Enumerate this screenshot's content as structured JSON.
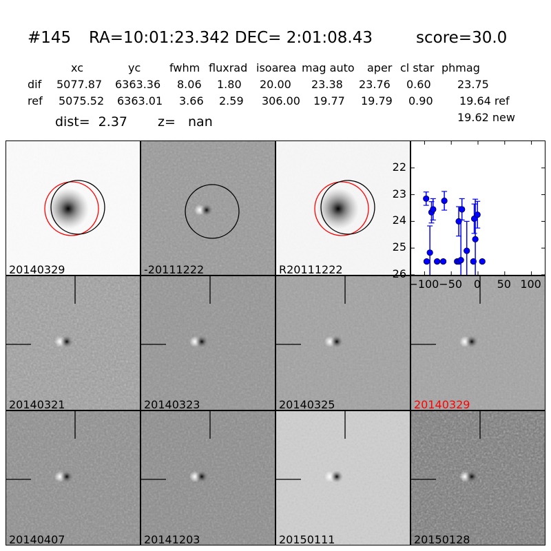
{
  "header": {
    "id": "#145",
    "coords": "RA=10:01:23.342 DEC= 2:01:08.43",
    "score": "score=30.0"
  },
  "table": {
    "columns": [
      "xc",
      "yc",
      "fwhm",
      "fluxrad",
      "isoarea",
      "mag auto",
      "aper",
      "cl star",
      "phmag"
    ],
    "rows": [
      {
        "label": "dif",
        "values": [
          "5077.87",
          "6363.36",
          "8.06",
          "1.80",
          "20.00",
          "23.38",
          "23.76",
          "0.60",
          "23.75"
        ]
      },
      {
        "label": "ref",
        "values": [
          "5075.52",
          "6363.01",
          "3.66",
          "2.59",
          "306.00",
          "19.77",
          "19.79",
          "0.90",
          "19.64 ref"
        ]
      }
    ],
    "phmag_new": "19.62 new",
    "dist": "dist=  2.37",
    "z": "z=   nan"
  },
  "panels": [
    {
      "label": "20140329",
      "type": "image"
    },
    {
      "label": "-20111222",
      "type": "diff"
    },
    {
      "label": "R20111222",
      "type": "image"
    },
    {
      "label": "20140321",
      "type": "diff"
    },
    {
      "label": "20140323",
      "type": "diff"
    },
    {
      "label": "20140325",
      "type": "diff"
    },
    {
      "label": "20140329",
      "type": "diff",
      "highlight": "#ff0000"
    },
    {
      "label": "20140407",
      "type": "diff"
    },
    {
      "label": "20141203",
      "type": "diff"
    },
    {
      "label": "20150111",
      "type": "diff"
    },
    {
      "label": "20150128",
      "type": "diff"
    }
  ],
  "colors": {
    "circle_ref": "#ff0000",
    "circle_obj": "#000000",
    "points": "#0000ff"
  },
  "chart_data": {
    "type": "scatter",
    "title": "",
    "xlabel": "",
    "ylabel": "",
    "xlim": [
      -125,
      125
    ],
    "ylim": [
      26,
      21
    ],
    "y_inverted": true,
    "xticks": [
      -100,
      -50,
      0,
      50,
      100
    ],
    "yticks": [
      22,
      23,
      24,
      25,
      26
    ],
    "grid": false,
    "error_bars": true,
    "points": [
      {
        "x": -96,
        "y": 25.5,
        "err": 0.05
      },
      {
        "x": -97,
        "y": 23.15,
        "err": 0.25
      },
      {
        "x": -90,
        "y": 25.17,
        "err": 1.0
      },
      {
        "x": -87,
        "y": 23.66,
        "err": 0.4
      },
      {
        "x": -84,
        "y": 23.55,
        "err": 0.4
      },
      {
        "x": -76.5,
        "y": 25.5,
        "err": 0.05
      },
      {
        "x": -65,
        "y": 25.5,
        "err": 0.05
      },
      {
        "x": -63,
        "y": 23.23,
        "err": 0.35
      },
      {
        "x": -39,
        "y": 25.5,
        "err": 0.05
      },
      {
        "x": -36,
        "y": 24.0,
        "err": 0.55
      },
      {
        "x": -35.5,
        "y": 25.5,
        "err": 0.05
      },
      {
        "x": -32,
        "y": 25.45,
        "err": 1.5
      },
      {
        "x": -30,
        "y": 23.55,
        "err": 0.4
      },
      {
        "x": -21,
        "y": 25.1,
        "err": 1.1
      },
      {
        "x": -8.6,
        "y": 25.5,
        "err": 0.05
      },
      {
        "x": -7,
        "y": 23.9,
        "err": 0.55
      },
      {
        "x": -5,
        "y": 24.67,
        "err": 1.5
      },
      {
        "x": -1,
        "y": 23.75,
        "err": 0.5
      },
      {
        "x": 8,
        "y": 25.5,
        "err": 0.05
      }
    ]
  }
}
